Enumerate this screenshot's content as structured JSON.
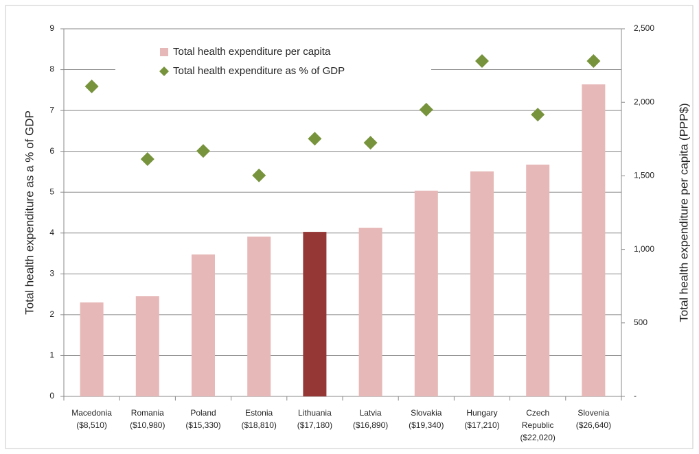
{
  "chart_data": {
    "type": "bar_line",
    "categories": [
      [
        "Macedonia",
        "($8,510)"
      ],
      [
        "Romania",
        "($10,980)"
      ],
      [
        "Poland",
        "($15,330)"
      ],
      [
        "Estonia",
        "($18,810)"
      ],
      [
        "Lithuania",
        "($17,180)"
      ],
      [
        "Latvia",
        "($16,890)"
      ],
      [
        "Slovakia",
        "($19,340)"
      ],
      [
        "Hungary",
        "($17,210)"
      ],
      [
        "Czech",
        "Republic",
        "($22,020)"
      ],
      [
        "Slovenia",
        "($26,640)"
      ]
    ],
    "series": [
      {
        "name": "Total health expenditure per capita",
        "type": "bar",
        "axis": "y2",
        "color": "#e6b8b7",
        "colors": [
          "#e6b8b7",
          "#e6b8b7",
          "#e6b8b7",
          "#e6b8b7",
          "#953735",
          "#e6b8b7",
          "#e6b8b7",
          "#e6b8b7",
          "#e6b8b7",
          "#e6b8b7"
        ],
        "values": [
          639,
          681,
          965,
          1087,
          1119,
          1147,
          1399,
          1530,
          1576,
          2122
        ]
      },
      {
        "name": "Total health expenditure as % of GDP",
        "type": "scatter",
        "axis": "y",
        "color": "#77933c",
        "values": [
          7.59,
          5.81,
          6.01,
          5.41,
          6.31,
          6.21,
          7.02,
          8.21,
          6.9,
          8.21
        ]
      }
    ],
    "ylabel": "Total health expenditure as a % of GDP",
    "y2label": "Total health expenditure per capita (PPP$)",
    "ylim": [
      0,
      9
    ],
    "yticks": [
      0,
      1,
      2,
      3,
      4,
      5,
      6,
      7,
      8,
      9
    ],
    "y2lim": [
      0,
      2500
    ],
    "y2ticks": [
      {
        "value": 0,
        "label": "-"
      },
      500,
      {
        "value": 1000,
        "label": "1,000"
      },
      {
        "value": 1500,
        "label": "1,500"
      },
      {
        "value": 2000,
        "label": "2,000"
      },
      {
        "value": 2500,
        "label": "2,500"
      }
    ],
    "grid": true
  }
}
